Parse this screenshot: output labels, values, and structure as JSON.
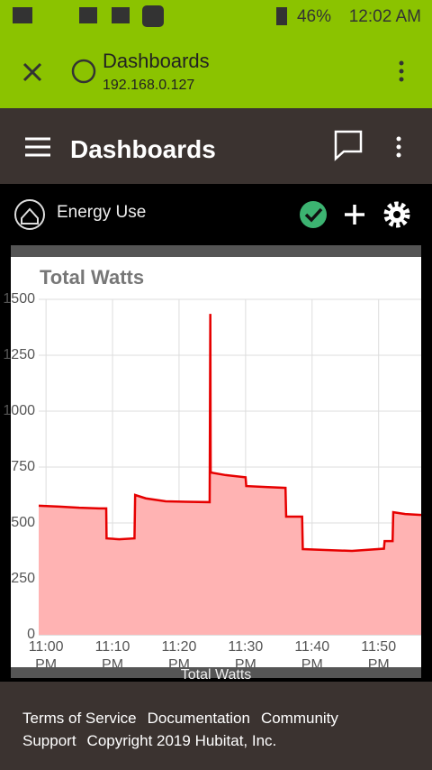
{
  "status_bar": {
    "battery": "46%",
    "time": "12:02 AM"
  },
  "browser_bar": {
    "title": "Dashboards",
    "url": "192.168.0.127"
  },
  "app_bar": {
    "title": "Dashboards"
  },
  "dashboard": {
    "name": "Energy Use"
  },
  "chart_data": {
    "type": "line",
    "title": "Total Watts",
    "x": [
      -1.1,
      2,
      5,
      8,
      9.05,
      9.1,
      11,
      13.3,
      13.4,
      15,
      18,
      21,
      24.6,
      24.7,
      24.75,
      24.9,
      27,
      30,
      30.1,
      33,
      36,
      36.1,
      38.5,
      38.6,
      42,
      46,
      50.8,
      50.9,
      52.1,
      52.2,
      54,
      56.4
    ],
    "series": [
      {
        "name": "Total Watts",
        "color": "#e60000",
        "fill": "#ffb3b3",
        "values": [
          577,
          573,
          568,
          565,
          565,
          431,
          427,
          431,
          625,
          610,
          597,
          595,
          593,
          1435,
          730,
          725,
          714,
          704,
          665,
          661,
          657,
          528,
          528,
          383,
          379,
          375,
          385,
          419,
          419,
          548,
          540,
          536
        ]
      }
    ],
    "xlim": [
      -1.1,
      56.4
    ],
    "ylim": [
      0,
      1500
    ],
    "yticks": [
      0,
      250,
      500,
      750,
      1000,
      1250,
      1500
    ],
    "xticks": [
      {
        "value": 0,
        "label": "11:00 PM"
      },
      {
        "value": 10,
        "label": "11:10 PM"
      },
      {
        "value": 20,
        "label": "11:20 PM"
      },
      {
        "value": 30,
        "label": "11:30 PM"
      },
      {
        "value": 40,
        "label": "11:40 PM"
      },
      {
        "value": 50,
        "label": "11:50 PM"
      }
    ],
    "grid": true
  },
  "footer": {
    "links": [
      "Terms of Service",
      "Documentation",
      "Community",
      "Support"
    ],
    "copyright": "Copyright 2019 Hubitat, Inc."
  }
}
